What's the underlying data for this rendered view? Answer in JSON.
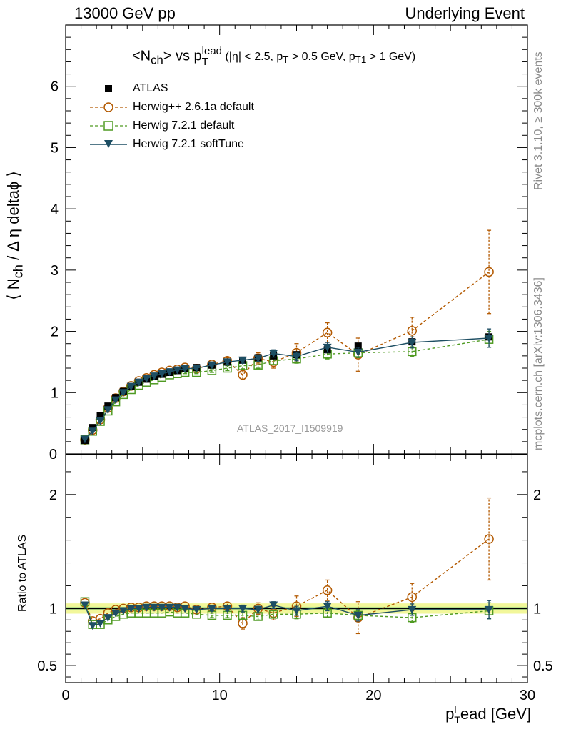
{
  "header": {
    "left": "13000 GeV pp",
    "right": "Underlying Event"
  },
  "side_labels": {
    "rivet": "Rivet 3.1.10, ≥ 300k events",
    "mcplots": "mcplots.cern.ch [arXiv:1306.3436]"
  },
  "watermark": "ATLAS_2017_I1509919",
  "title": {
    "main_a": "<N",
    "main_a_sub": "ch",
    "main_b": "> vs p",
    "main_b_sup": "lead",
    "main_b_sub": "T",
    "cuts_a": " (|η| < 2.5, p",
    "cuts_a_sub": "T",
    "cuts_b": " > 0.5 GeV, p",
    "cuts_b_sub": "T1",
    "cuts_c": " > 1 GeV)"
  },
  "axes": {
    "ylabel_main": "⟨ N",
    "ylabel_main_sub": "ch",
    "ylabel_main_rest": " / Δ η deltaϕ ⟩",
    "ylabel_ratio": "Ratio to ATLAS",
    "xlabel_a": "p",
    "xlabel_sup": "l",
    "xlabel_sub": "T",
    "xlabel_b": "ead [GeV]"
  },
  "colors": {
    "atlas": "#000000",
    "herwigpp": "#b35900",
    "herwig721": "#4f9a22",
    "softtune": "#1d4e63",
    "band_outer": "#f2f79a",
    "band_inner": "#b8e38a"
  },
  "chart_data": {
    "type": "scatter",
    "x_range": [
      0,
      30
    ],
    "main_ylim": [
      0,
      7
    ],
    "ratio_ylim": [
      0.35,
      2.35
    ],
    "x_ticks": [
      0,
      10,
      20,
      30
    ],
    "main_y_ticks": [
      1,
      2,
      3,
      4,
      5,
      6
    ],
    "ratio_y_ticks": [
      0.5,
      1,
      2
    ],
    "x": [
      1.25,
      1.75,
      2.25,
      2.75,
      3.25,
      3.75,
      4.25,
      4.75,
      5.25,
      5.75,
      6.25,
      6.75,
      7.25,
      7.75,
      8.5,
      9.5,
      10.5,
      11.5,
      12.5,
      13.5,
      15.0,
      17.0,
      19.0,
      22.5,
      27.5
    ],
    "series": [
      {
        "name": "ATLAS",
        "marker": "filled-square",
        "values": [
          0.22,
          0.43,
          0.62,
          0.78,
          0.92,
          1.02,
          1.1,
          1.17,
          1.22,
          1.26,
          1.3,
          1.33,
          1.36,
          1.39,
          1.41,
          1.45,
          1.5,
          1.53,
          1.57,
          1.6,
          1.62,
          1.7,
          1.76,
          1.83,
          1.91
        ],
        "ratio": [
          1,
          1,
          1,
          1,
          1,
          1,
          1,
          1,
          1,
          1,
          1,
          1,
          1,
          1,
          1,
          1,
          1,
          1,
          1,
          1,
          1,
          1,
          1,
          1,
          1
        ]
      },
      {
        "name": "Herwig++ 2.6.1a default",
        "marker": "open-circle",
        "values": [
          0.23,
          0.39,
          0.56,
          0.75,
          0.91,
          1.02,
          1.11,
          1.19,
          1.24,
          1.29,
          1.33,
          1.36,
          1.38,
          1.41,
          1.39,
          1.46,
          1.52,
          1.29,
          1.56,
          1.5,
          1.65,
          1.98,
          1.62,
          2.01,
          2.97
        ],
        "errors": [
          0.01,
          0.01,
          0.01,
          0.01,
          0.01,
          0.01,
          0.01,
          0.01,
          0.01,
          0.01,
          0.01,
          0.01,
          0.01,
          0.02,
          0.02,
          0.03,
          0.05,
          0.08,
          0.09,
          0.1,
          0.15,
          0.16,
          0.27,
          0.22,
          0.68
        ],
        "ratio": [
          1.05,
          0.89,
          0.91,
          0.96,
          0.99,
          1.0,
          1.01,
          1.01,
          1.02,
          1.02,
          1.02,
          1.02,
          1.01,
          1.02,
          0.99,
          1.01,
          1.02,
          0.87,
          1.0,
          0.96,
          1.02,
          1.16,
          0.92,
          1.1,
          1.61
        ],
        "ratio_errors": [
          0.01,
          0.01,
          0.01,
          0.01,
          0.01,
          0.01,
          0.01,
          0.01,
          0.01,
          0.01,
          0.01,
          0.01,
          0.01,
          0.01,
          0.01,
          0.02,
          0.03,
          0.05,
          0.05,
          0.06,
          0.09,
          0.09,
          0.14,
          0.12,
          0.36
        ]
      },
      {
        "name": "Herwig 7.2.1 default",
        "marker": "open-square",
        "values": [
          0.23,
          0.37,
          0.53,
          0.7,
          0.85,
          0.97,
          1.05,
          1.12,
          1.17,
          1.21,
          1.25,
          1.29,
          1.31,
          1.33,
          1.33,
          1.36,
          1.4,
          1.44,
          1.45,
          1.52,
          1.55,
          1.63,
          1.65,
          1.67,
          1.87
        ],
        "errors": [
          0.01,
          0.01,
          0.01,
          0.01,
          0.01,
          0.01,
          0.01,
          0.01,
          0.01,
          0.01,
          0.01,
          0.01,
          0.01,
          0.02,
          0.02,
          0.03,
          0.04,
          0.05,
          0.05,
          0.06,
          0.07,
          0.08,
          0.08,
          0.08,
          0.13
        ],
        "ratio": [
          1.06,
          0.86,
          0.86,
          0.9,
          0.93,
          0.95,
          0.96,
          0.96,
          0.96,
          0.96,
          0.96,
          0.97,
          0.96,
          0.96,
          0.95,
          0.94,
          0.94,
          0.94,
          0.93,
          0.95,
          0.95,
          0.96,
          0.94,
          0.92,
          0.98
        ],
        "ratio_errors": [
          0.01,
          0.01,
          0.01,
          0.01,
          0.01,
          0.01,
          0.01,
          0.01,
          0.01,
          0.01,
          0.01,
          0.01,
          0.01,
          0.01,
          0.01,
          0.02,
          0.02,
          0.03,
          0.03,
          0.03,
          0.04,
          0.04,
          0.04,
          0.04,
          0.07
        ]
      },
      {
        "name": "Herwig 7.2.1 softTune",
        "marker": "filled-triangle-down",
        "values": [
          0.24,
          0.37,
          0.54,
          0.72,
          0.88,
          1.0,
          1.1,
          1.17,
          1.23,
          1.27,
          1.31,
          1.34,
          1.37,
          1.39,
          1.4,
          1.45,
          1.5,
          1.53,
          1.56,
          1.64,
          1.59,
          1.74,
          1.66,
          1.82,
          1.89
        ],
        "errors": [
          0.01,
          0.01,
          0.01,
          0.01,
          0.01,
          0.01,
          0.01,
          0.01,
          0.01,
          0.01,
          0.01,
          0.01,
          0.01,
          0.02,
          0.02,
          0.03,
          0.04,
          0.05,
          0.05,
          0.06,
          0.07,
          0.08,
          0.08,
          0.09,
          0.15
        ],
        "ratio": [
          1.03,
          0.85,
          0.87,
          0.92,
          0.96,
          0.98,
          1.0,
          1.0,
          1.01,
          1.01,
          1.01,
          1.01,
          1.01,
          1.0,
          0.99,
          1.0,
          1.0,
          1.0,
          0.99,
          1.03,
          0.98,
          1.02,
          0.94,
          0.99,
          0.99
        ],
        "ratio_errors": [
          0.01,
          0.01,
          0.01,
          0.01,
          0.01,
          0.01,
          0.01,
          0.01,
          0.01,
          0.01,
          0.01,
          0.01,
          0.01,
          0.01,
          0.01,
          0.02,
          0.02,
          0.03,
          0.03,
          0.03,
          0.04,
          0.04,
          0.05,
          0.05,
          0.08
        ]
      }
    ],
    "ratio_band": {
      "inner": [
        0.985,
        1.015
      ],
      "outer": [
        0.955,
        1.045
      ]
    }
  }
}
